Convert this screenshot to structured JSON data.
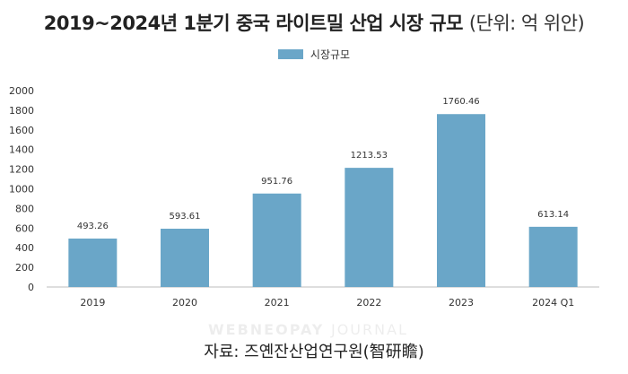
{
  "title": "2019~2024년 1분기 중국 라이트밀 산업 시장 규모",
  "unit": "(단위: 억 위안)",
  "legend_label": "시장규모",
  "source": "자료: 즈옌잔산업연구원(智研瞻)",
  "watermark": {
    "bold": "WEBNEOPAY",
    "light": "JOURNAL"
  },
  "colors": {
    "bar": "#6aa6c8",
    "axis": "#bdbdbd",
    "text": "#333333"
  },
  "chart_data": {
    "type": "bar",
    "title": "2019~2024년 1분기 중국 라이트밀 산업 시장 규모",
    "xlabel": "",
    "ylabel": "",
    "categories": [
      "2019",
      "2020",
      "2021",
      "2022",
      "2023",
      "2024 Q1"
    ],
    "series": [
      {
        "name": "시장규모",
        "values": [
          493.26,
          593.61,
          951.76,
          1213.53,
          1760.46,
          613.14
        ],
        "labels": [
          "493.26",
          "593.61",
          "951.76",
          "1213.53",
          "1760.46",
          "613.14"
        ]
      }
    ],
    "ylim": [
      0,
      2000
    ],
    "yticks": [
      0,
      200,
      400,
      600,
      800,
      1000,
      1200,
      1400,
      1600,
      1800,
      2000
    ],
    "grid": false,
    "legend": "top-center"
  }
}
